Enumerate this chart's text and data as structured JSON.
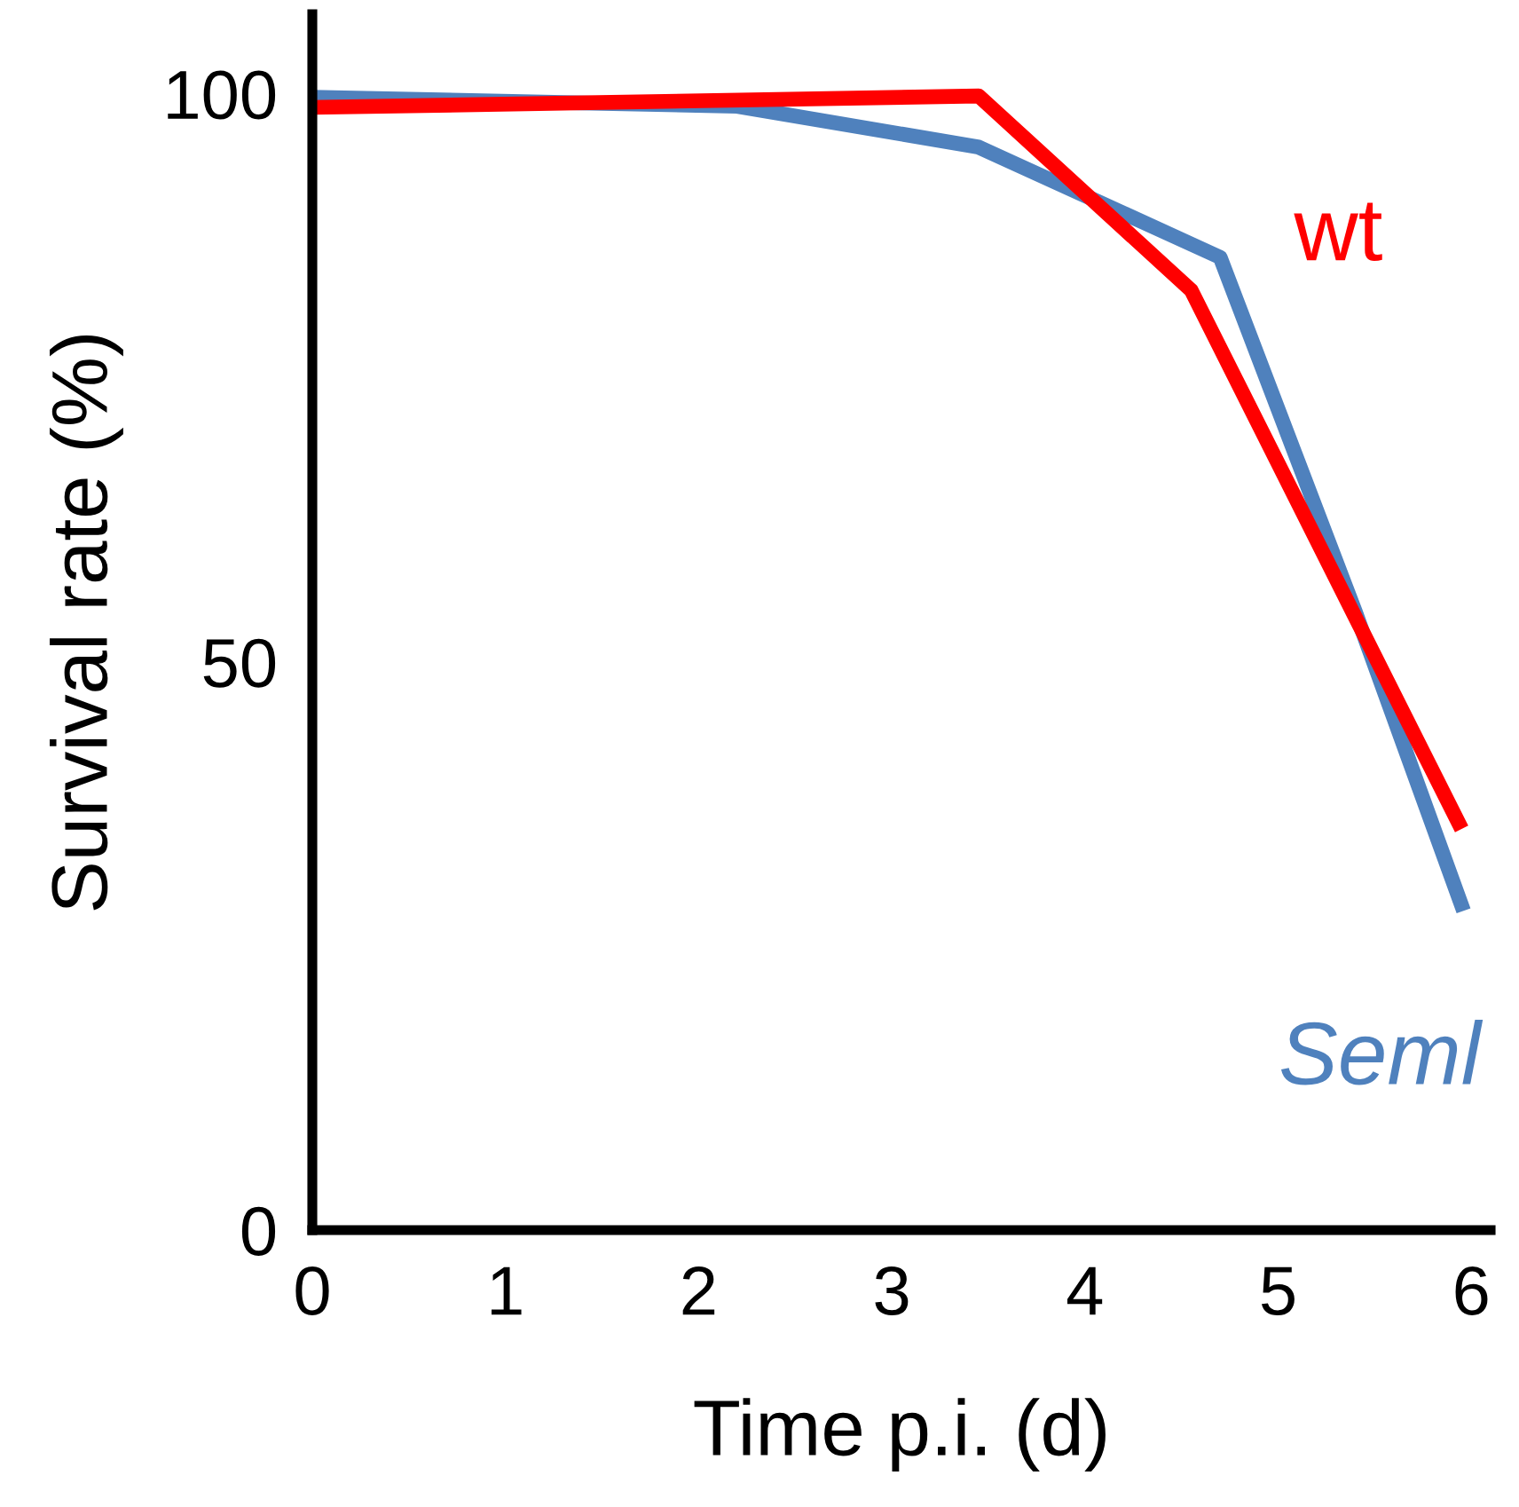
{
  "chart_data": {
    "type": "line",
    "xlabel": "Time p.i. (d)",
    "ylabel": "Survival rate (%)",
    "xlim": [
      0,
      6.1
    ],
    "xticks": [
      0,
      1,
      2,
      3,
      4,
      5,
      6
    ],
    "ylim": [
      0,
      107
    ],
    "yticks": [
      0,
      50,
      100
    ],
    "grid": false,
    "legend": false,
    "marker": "none",
    "line_style": "solid",
    "series": [
      {
        "name": "Seml",
        "color": "#4f81bd",
        "x": [
          0,
          2.2,
          3.45,
          4.7,
          5.4,
          5.96
        ],
        "values": [
          99.7,
          98.9,
          95.3,
          85.6,
          54.4,
          28.1
        ]
      },
      {
        "name": "wt",
        "color": "#ff0000",
        "x": [
          0,
          3.45,
          4.55,
          5.95
        ],
        "values": [
          98.8,
          99.8,
          82.7,
          35.3
        ]
      }
    ]
  }
}
